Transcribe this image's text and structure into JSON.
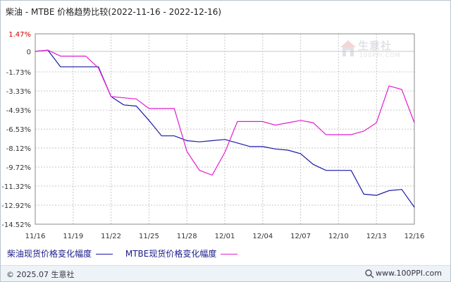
{
  "title": "柴油 - MTBE 价格趋势比较(2022-11-16 - 2022-12-16)",
  "watermark": {
    "text": "生意社",
    "sub": "100PPI.COM"
  },
  "footer": {
    "copyright": "© 2025.07 生意社",
    "site": "www.100PPI.com"
  },
  "colors": {
    "diesel": "#1a1aa6",
    "mtbe": "#e21ed0",
    "grid": "#c8c8c8",
    "axis": "#333333",
    "first_tick": "#cc0000"
  },
  "chart_data": {
    "type": "line",
    "title": "柴油 - MTBE 价格趋势比较(2022-11-16 - 2022-12-16)",
    "xlabel": "",
    "ylabel": "",
    "x": [
      "11/16",
      "11/17",
      "11/18",
      "11/19",
      "11/20",
      "11/21",
      "11/22",
      "11/23",
      "11/24",
      "11/25",
      "11/26",
      "11/27",
      "11/28",
      "11/29",
      "11/30",
      "12/01",
      "12/02",
      "12/03",
      "12/04",
      "12/05",
      "12/06",
      "12/07",
      "12/08",
      "12/09",
      "12/10",
      "12/11",
      "12/12",
      "12/13",
      "12/14",
      "12/15",
      "12/16"
    ],
    "x_tick_labels": [
      "11/16",
      "11/19",
      "11/22",
      "11/25",
      "11/28",
      "12/01",
      "12/04",
      "12/07",
      "12/10",
      "12/13",
      "12/16"
    ],
    "y_tick_labels": [
      "1.47%",
      "0",
      "-1.73%",
      "-3.33%",
      "-4.93%",
      "-6.53%",
      "-8.12%",
      "-9.72%",
      "-11.32%",
      "-12.92%",
      "-14.52%"
    ],
    "y_ticks": [
      1.47,
      0,
      -1.73,
      -3.33,
      -4.93,
      -6.53,
      -8.12,
      -9.72,
      -11.32,
      -12.92,
      -14.52
    ],
    "ylim": [
      -14.52,
      1.47
    ],
    "grid": true,
    "legend_position": "bottom",
    "series": [
      {
        "name": "柴油现货价格变化幅度",
        "color": "#1a1aa6",
        "values": [
          0,
          0.1,
          -1.3,
          -1.3,
          -1.3,
          -1.3,
          -3.8,
          -4.5,
          -4.6,
          -5.8,
          -7.1,
          -7.1,
          -7.5,
          -7.6,
          -7.5,
          -7.4,
          -7.7,
          -8.0,
          -8.0,
          -8.2,
          -8.3,
          -8.6,
          -9.5,
          -10.0,
          -10.0,
          -10.0,
          -12.0,
          -12.1,
          -11.7,
          -11.6,
          -13.1
        ]
      },
      {
        "name": "MTBE现货价格变化幅度",
        "color": "#e21ed0",
        "values": [
          0,
          0.1,
          -0.4,
          -0.4,
          -0.4,
          -1.4,
          -3.8,
          -3.9,
          -4.0,
          -4.8,
          -4.8,
          -4.8,
          -8.4,
          -10.0,
          -10.4,
          -8.5,
          -5.9,
          -5.9,
          -5.9,
          -6.2,
          -6.0,
          -5.8,
          -6.0,
          -7.0,
          -7.0,
          -7.0,
          -6.7,
          -6.0,
          -2.9,
          -3.2,
          -6.0
        ]
      }
    ]
  }
}
